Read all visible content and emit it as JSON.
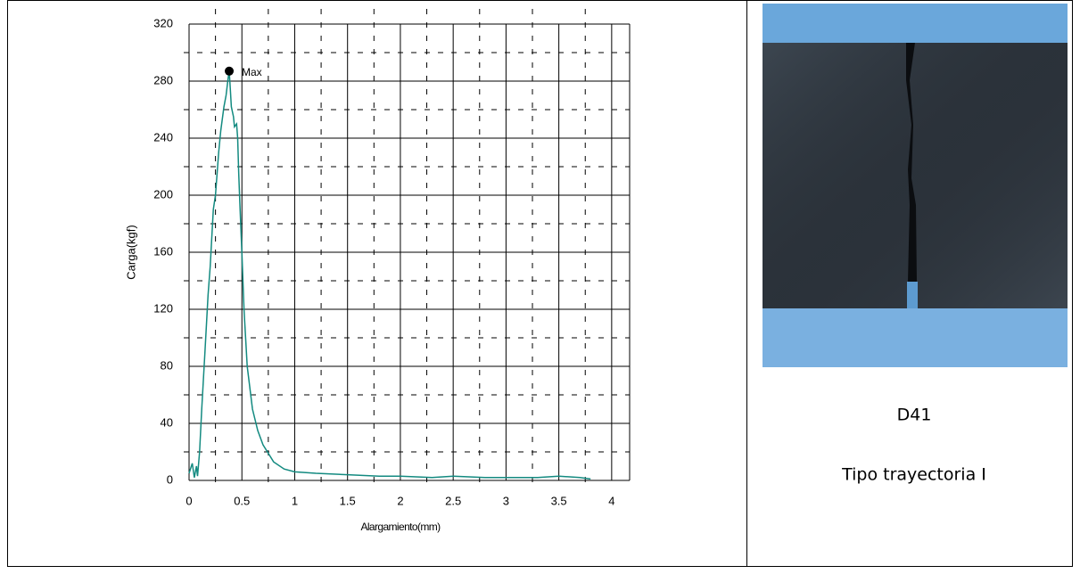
{
  "chart_data": {
    "type": "line",
    "x_label": "Alargamiento(mm)",
    "y_label": "Carga(kgf)",
    "xlim": [
      0,
      4.17
    ],
    "ylim": [
      0,
      320
    ],
    "xticks": [
      0,
      0.5,
      1,
      1.5,
      2,
      2.5,
      3,
      3.5,
      4
    ],
    "yticks": [
      0,
      40,
      80,
      120,
      160,
      200,
      240,
      280,
      320
    ],
    "x_minor_ticks": [
      0.25,
      0.75,
      1.25,
      1.75,
      2.25,
      2.75,
      3.25,
      3.75
    ],
    "y_minor_ticks": [
      20,
      60,
      100,
      140,
      180,
      220,
      260,
      300
    ],
    "grid": true,
    "series": [
      {
        "color": "#138a80",
        "x": [
          0,
          0.03,
          0.05,
          0.07,
          0.08,
          0.1,
          0.12,
          0.15,
          0.18,
          0.2,
          0.23,
          0.25,
          0.28,
          0.3,
          0.33,
          0.35,
          0.37,
          0.38,
          0.39,
          0.4,
          0.42,
          0.43,
          0.45,
          0.46,
          0.47,
          0.48,
          0.5,
          0.52,
          0.55,
          0.6,
          0.65,
          0.7,
          0.8,
          0.9,
          1,
          1.2,
          1.5,
          1.8,
          2,
          2.3,
          2.5,
          2.8,
          3,
          3.3,
          3.5,
          3.7,
          3.8
        ],
        "values": [
          5,
          12,
          2,
          10,
          3,
          20,
          50,
          90,
          130,
          150,
          190,
          200,
          230,
          245,
          262,
          270,
          282,
          287,
          275,
          262,
          255,
          248,
          250,
          240,
          215,
          195,
          160,
          120,
          80,
          50,
          35,
          25,
          13,
          8,
          6,
          5,
          4,
          3,
          3,
          2,
          3,
          2,
          2,
          2,
          3,
          2,
          1
        ]
      }
    ],
    "annotations": [
      {
        "text": "Max",
        "x": 0.38,
        "y": 287
      }
    ]
  },
  "caption": {
    "code": "D41",
    "label": "Tipo trayectoria I"
  }
}
